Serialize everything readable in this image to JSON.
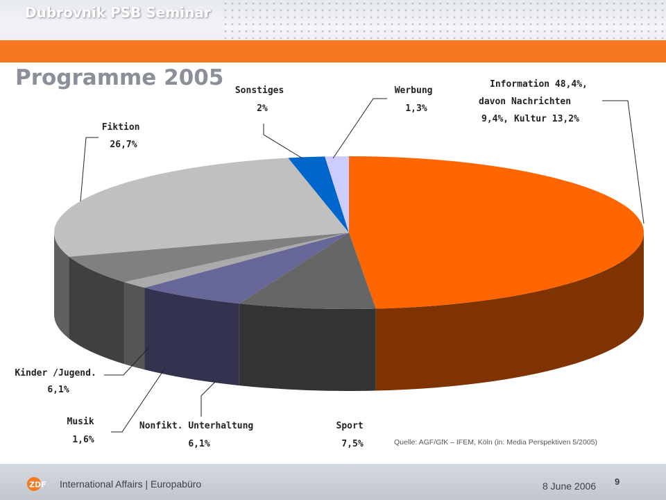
{
  "header": {
    "seminar_title": "Dubrovnik PSB Seminar"
  },
  "slide": {
    "title": "Programme 2005"
  },
  "chart_data": {
    "type": "pie",
    "title": "Programme 2005",
    "slices": [
      {
        "label_lines": [
          "Information 48,4%,",
          "davon Nachrichten",
          "9,4%, Kultur 13,2%"
        ],
        "value": 48.4,
        "color": "#ff6600",
        "side_color": "#7f3300"
      },
      {
        "label_lines": [
          "Sport",
          "7,5%"
        ],
        "value": 7.5,
        "color": "#666666",
        "side_color": "#333333"
      },
      {
        "label_lines": [
          "Nonfikt. Unterhaltung",
          "6,1%"
        ],
        "value": 6.1,
        "color": "#666699",
        "side_color": "#333350"
      },
      {
        "label_lines": [
          "Musik",
          "1,6%"
        ],
        "value": 1.6,
        "color": "#aaaaaa",
        "side_color": "#555555"
      },
      {
        "label_lines": [
          "Kinder /Jugend.",
          "6,1%"
        ],
        "value": 6.1,
        "color": "#808080",
        "side_color": "#404040"
      },
      {
        "label_lines": [
          "Fiktion",
          "26,7%"
        ],
        "value": 26.7,
        "color": "#c0c0c0",
        "side_color": "#606060"
      },
      {
        "label_lines": [
          "Sonstiges",
          "2%"
        ],
        "value": 2.0,
        "color": "#0066cc",
        "side_color": "#003366"
      },
      {
        "label_lines": [
          "Werbung",
          "1,3%"
        ],
        "value": 1.3,
        "color": "#ccccff",
        "side_color": "#666680"
      }
    ],
    "source": "Quelle: AGF/GfK – IFEM, Köln (in: Media Perspektiven 5/2005)"
  },
  "footer": {
    "organization": "International Affairs | Europabüro",
    "logo_text": "ZDF",
    "date": "8 June 2006",
    "page_number": "9"
  }
}
